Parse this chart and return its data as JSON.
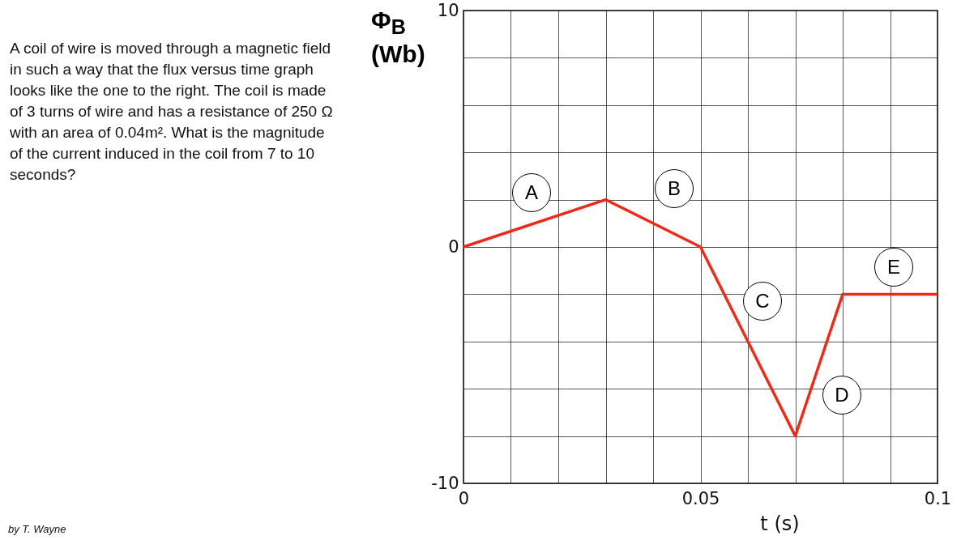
{
  "chart_data": {
    "type": "line",
    "xlabel": "t (s)",
    "ylabel": "Φ$_{B}$ (Wb)",
    "x": [
      0,
      0.03,
      0.05,
      0.07,
      0.08,
      0.1
    ],
    "series": [
      {
        "color": "#ee2a1a",
        "values": [
          0,
          2,
          0,
          -8,
          -2,
          -2
        ]
      }
    ],
    "xlim": [
      0,
      0.1
    ],
    "ylim": [
      -10,
      10
    ],
    "xticks": [
      0,
      {
        "value": 0.01,
        "label": null
      },
      {
        "value": 0.02,
        "label": null
      },
      {
        "value": 0.03,
        "label": null
      },
      {
        "value": 0.04,
        "label": null
      },
      0.05,
      {
        "value": 0.06,
        "label": null
      },
      {
        "value": 0.07,
        "label": null
      },
      {
        "value": 0.08,
        "label": null
      },
      {
        "value": 0.09,
        "label": null
      },
      0.1
    ],
    "yticks": [
      -10,
      {
        "value": -8,
        "label": null
      },
      {
        "value": -6,
        "label": null
      },
      {
        "value": -4,
        "label": null
      },
      {
        "value": -2,
        "label": null
      },
      0,
      {
        "value": 2,
        "label": null
      },
      {
        "value": 4,
        "label": null
      },
      {
        "value": 6,
        "label": null
      },
      {
        "value": 8,
        "label": null
      },
      10
    ],
    "grid": true,
    "annotations": [
      "A coil of wire is moved through a magnetic field in such a way that the flux versus time graph looks like the one to the right. The coil is made of 3 turns of wire and has a resistance of 250 Ω with an area of 0.04m². What is the magnitude of the current induced in the coil from 7 to 10 seconds?",
      "A",
      "B",
      "C",
      "D",
      "E",
      "by T. Wayne"
    ]
  }
}
